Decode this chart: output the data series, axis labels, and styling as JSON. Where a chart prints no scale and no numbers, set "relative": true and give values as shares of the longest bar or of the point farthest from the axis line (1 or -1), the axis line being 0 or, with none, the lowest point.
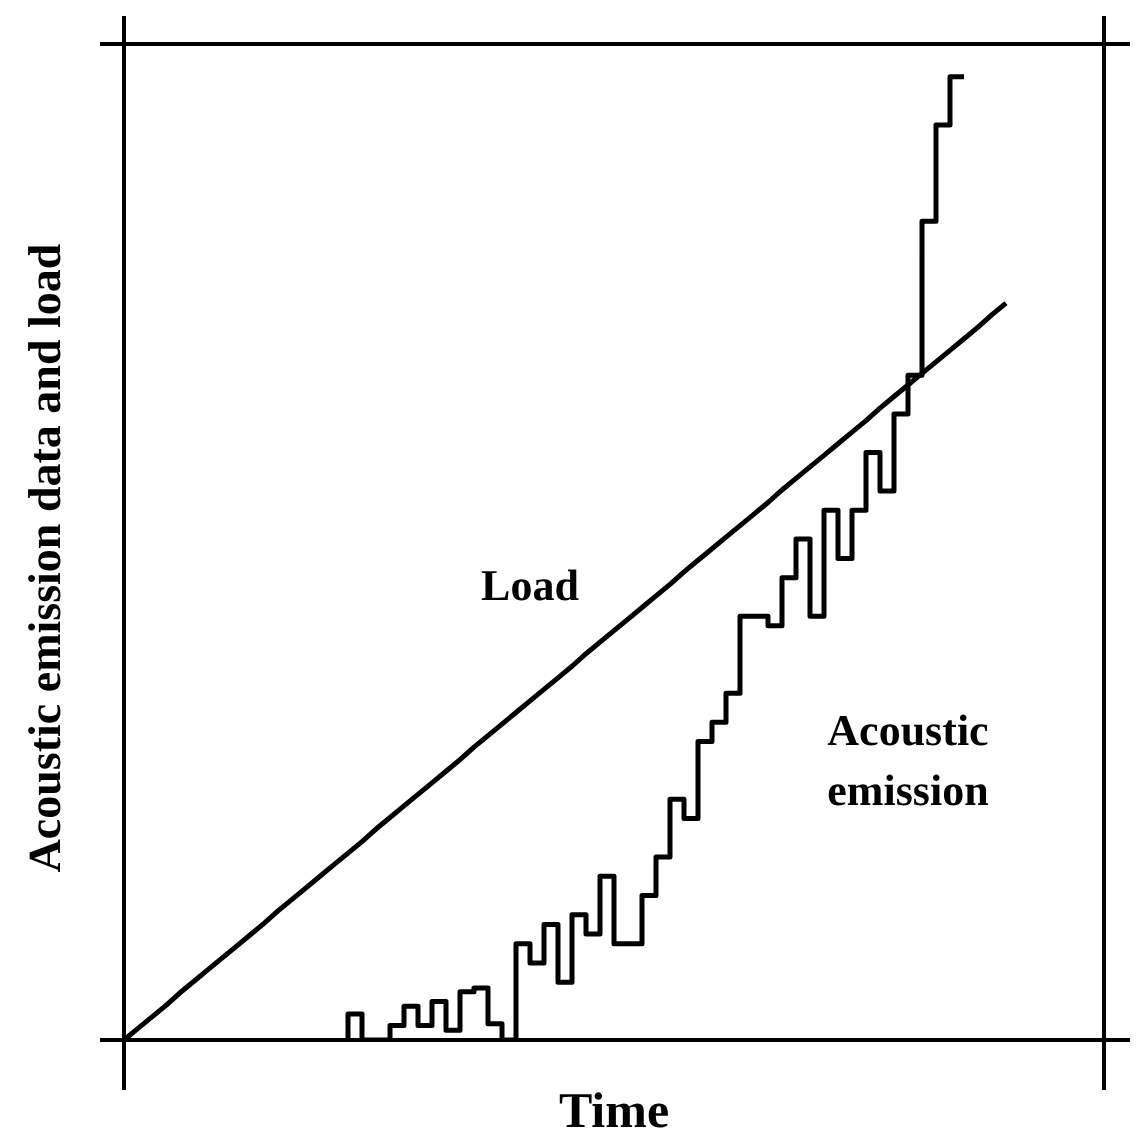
{
  "chart_data": {
    "type": "line",
    "xlabel": "Time",
    "ylabel": "Acoustic emission data and load",
    "relative": true,
    "tick_labels": false,
    "grid": false,
    "legend": false,
    "marker": "none",
    "line_style": "solid",
    "categories": [
      null,
      null,
      null,
      null,
      null,
      null,
      null,
      null,
      null,
      null,
      null,
      null,
      null,
      null,
      null,
      null,
      null,
      null,
      null,
      null,
      null,
      null,
      null,
      null,
      null,
      null,
      null,
      null,
      null,
      null,
      null,
      null,
      null,
      null,
      null,
      null,
      null,
      null,
      null,
      null,
      null,
      null,
      null,
      null,
      null,
      null,
      null,
      null,
      null,
      null,
      null,
      null,
      null,
      null,
      null,
      null,
      null,
      null,
      null,
      null,
      null,
      null,
      null,
      null,
      null,
      null,
      null,
      null,
      null,
      null,
      null
    ],
    "series": [
      {
        "name": "Load",
        "color": "#000000",
        "values": [
          0,
          0.012,
          0.024,
          0.036,
          0.049,
          0.061,
          0.073,
          0.085,
          0.097,
          0.109,
          0.121,
          0.134,
          0.146,
          0.158,
          0.17,
          0.182,
          0.194,
          0.206,
          0.219,
          0.231,
          0.243,
          0.255,
          0.267,
          0.279,
          0.291,
          0.304,
          0.316,
          0.328,
          0.34,
          0.352,
          0.364,
          0.376,
          0.388,
          0.401,
          0.413,
          0.425,
          0.437,
          0.449,
          0.461,
          0.473,
          0.486,
          0.498,
          0.51,
          0.522,
          0.534,
          0.546,
          0.558,
          0.571,
          0.583,
          0.595,
          0.607,
          0.619,
          0.631,
          0.643,
          0.656,
          0.668,
          0.68,
          0.692,
          0.704,
          0.716,
          0.728,
          0.74,
          0.753,
          0.765,
          null,
          null,
          null,
          null,
          null,
          null,
          null
        ]
      },
      {
        "name": "Acoustic emission",
        "type": "step",
        "color": "#000000",
        "values": [
          null,
          null,
          null,
          null,
          null,
          null,
          null,
          null,
          null,
          null,
          null,
          null,
          null,
          null,
          null,
          null,
          0,
          0.027,
          0,
          0,
          0.015,
          0.035,
          0.015,
          0.04,
          0.01,
          0.05,
          0.054,
          0.017,
          0,
          0.1,
          0.08,
          0.12,
          0.06,
          0.13,
          0.11,
          0.17,
          0.1,
          0.1,
          0.15,
          0.19,
          0.25,
          0.23,
          0.31,
          0.33,
          0.36,
          0.44,
          0.44,
          0.43,
          0.48,
          0.52,
          0.44,
          0.55,
          0.5,
          0.55,
          0.61,
          0.57,
          0.65,
          0.69,
          0.85,
          0.95,
          1,
          null,
          null,
          null,
          null,
          null,
          null,
          null,
          null,
          null,
          null
        ]
      }
    ]
  }
}
